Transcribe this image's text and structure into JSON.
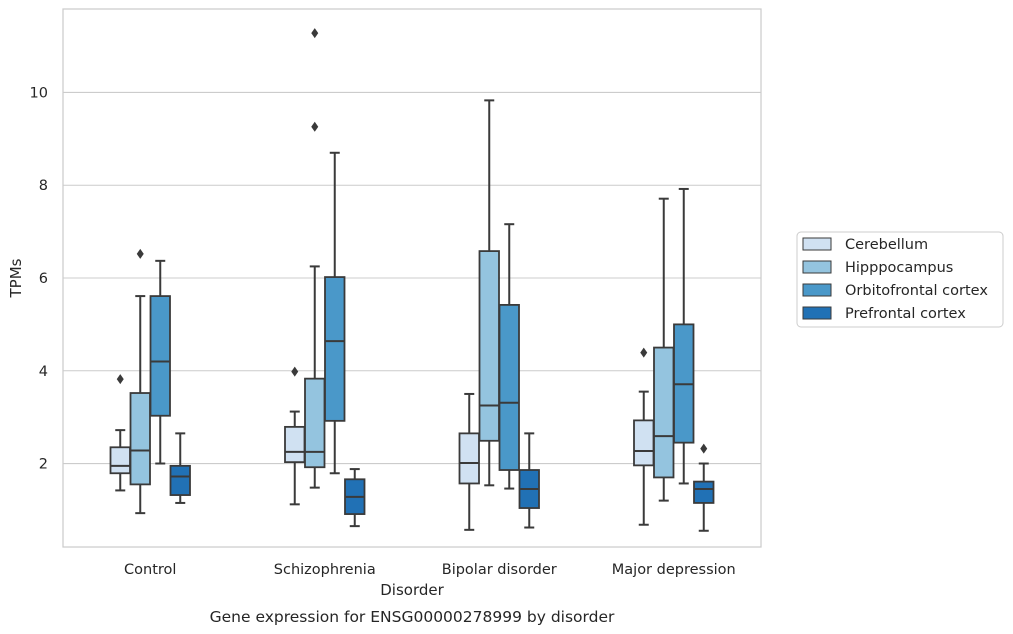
{
  "chart_data": {
    "type": "box",
    "title": "Gene expression for ENSG00000278999 by disorder",
    "xlabel": "Disorder",
    "ylabel": "TPMs",
    "ylim": [
      0.2,
      11.8
    ],
    "yticks": [
      2,
      4,
      6,
      8,
      10
    ],
    "grid": "horizontal",
    "legend_position": "right",
    "categories": [
      "Control",
      "Schizophrenia",
      "Bipolar disorder",
      "Major depression"
    ],
    "series": [
      {
        "name": "Cerebellum",
        "color": "#d0e1f2",
        "boxes": [
          {
            "whislo": 1.42,
            "q1": 1.79,
            "med": 1.95,
            "q3": 2.35,
            "whishi": 2.72,
            "fliers": [
              3.82
            ]
          },
          {
            "whislo": 1.12,
            "q1": 2.03,
            "med": 2.25,
            "q3": 2.79,
            "whishi": 3.12,
            "fliers": [
              3.98
            ]
          },
          {
            "whislo": 0.57,
            "q1": 1.57,
            "med": 2.01,
            "q3": 2.65,
            "whishi": 3.5,
            "fliers": []
          },
          {
            "whislo": 0.68,
            "q1": 1.96,
            "med": 2.27,
            "q3": 2.93,
            "whishi": 3.55,
            "fliers": [
              4.39
            ]
          }
        ]
      },
      {
        "name": "Hipppocampus",
        "color": "#94c4df",
        "boxes": [
          {
            "whislo": 0.93,
            "q1": 1.55,
            "med": 2.28,
            "q3": 3.52,
            "whishi": 5.61,
            "fliers": [
              6.52
            ]
          },
          {
            "whislo": 1.48,
            "q1": 1.92,
            "med": 2.25,
            "q3": 3.83,
            "whishi": 6.25,
            "fliers": [
              9.26,
              11.28
            ]
          },
          {
            "whislo": 1.53,
            "q1": 2.49,
            "med": 3.25,
            "q3": 6.58,
            "whishi": 9.83,
            "fliers": []
          },
          {
            "whislo": 1.2,
            "q1": 1.7,
            "med": 2.59,
            "q3": 4.5,
            "whishi": 7.71,
            "fliers": []
          }
        ]
      },
      {
        "name": "Orbitofrontal cortex",
        "color": "#4a98c9",
        "boxes": [
          {
            "whislo": 2.0,
            "q1": 3.03,
            "med": 4.2,
            "q3": 5.61,
            "whishi": 6.37,
            "fliers": []
          },
          {
            "whislo": 1.79,
            "q1": 2.92,
            "med": 4.64,
            "q3": 6.02,
            "whishi": 8.7,
            "fliers": []
          },
          {
            "whislo": 1.46,
            "q1": 1.86,
            "med": 3.31,
            "q3": 5.42,
            "whishi": 7.16,
            "fliers": []
          },
          {
            "whislo": 1.57,
            "q1": 2.45,
            "med": 3.71,
            "q3": 5.0,
            "whishi": 7.92,
            "fliers": []
          }
        ]
      },
      {
        "name": "Prefrontal cortex",
        "color": "#2171b5",
        "boxes": [
          {
            "whislo": 1.15,
            "q1": 1.32,
            "med": 1.72,
            "q3": 1.95,
            "whishi": 2.65,
            "fliers": []
          },
          {
            "whislo": 0.65,
            "q1": 0.91,
            "med": 1.28,
            "q3": 1.66,
            "whishi": 1.88,
            "fliers": []
          },
          {
            "whislo": 0.62,
            "q1": 1.04,
            "med": 1.45,
            "q3": 1.86,
            "whishi": 2.65,
            "fliers": []
          },
          {
            "whislo": 0.55,
            "q1": 1.15,
            "med": 1.45,
            "q3": 1.61,
            "whishi": 2.0,
            "fliers": [
              2.32
            ]
          }
        ]
      }
    ]
  }
}
